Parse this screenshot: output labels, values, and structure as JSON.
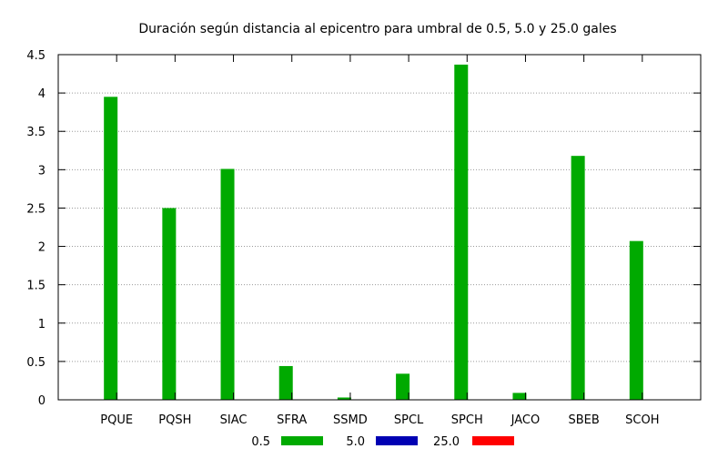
{
  "chart_data": {
    "type": "bar",
    "title": "Duración según distancia al epicentro para umbral de 0.5, 5.0 y 25.0 gales",
    "xlabel": "",
    "ylabel": "",
    "categories": [
      "PQUE",
      "PQSH",
      "SIAC",
      "SFRA",
      "SSMD",
      "SPCL",
      "SPCH",
      "JACO",
      "SBEB",
      "SCOH"
    ],
    "series": [
      {
        "name": "0.5",
        "color": "#00aa00",
        "values": [
          3.95,
          2.5,
          3.01,
          0.44,
          0.03,
          0.34,
          4.37,
          0.09,
          3.18,
          2.07
        ]
      },
      {
        "name": "5.0",
        "color": "#0000b3",
        "values": [
          0,
          0,
          0,
          0,
          0,
          0,
          0,
          0,
          0,
          0
        ]
      },
      {
        "name": "25.0",
        "color": "#ff0000",
        "values": [
          0,
          0,
          0,
          0,
          0,
          0,
          0,
          0,
          0,
          0
        ]
      }
    ],
    "ylim": [
      0,
      4.5
    ],
    "yticks": [
      "0",
      "0.5",
      "1",
      "1.5",
      "2",
      "2.5",
      "3",
      "3.5",
      "4",
      "4.5"
    ],
    "grid": "horizontal dotted",
    "legend_position": "bottom"
  }
}
